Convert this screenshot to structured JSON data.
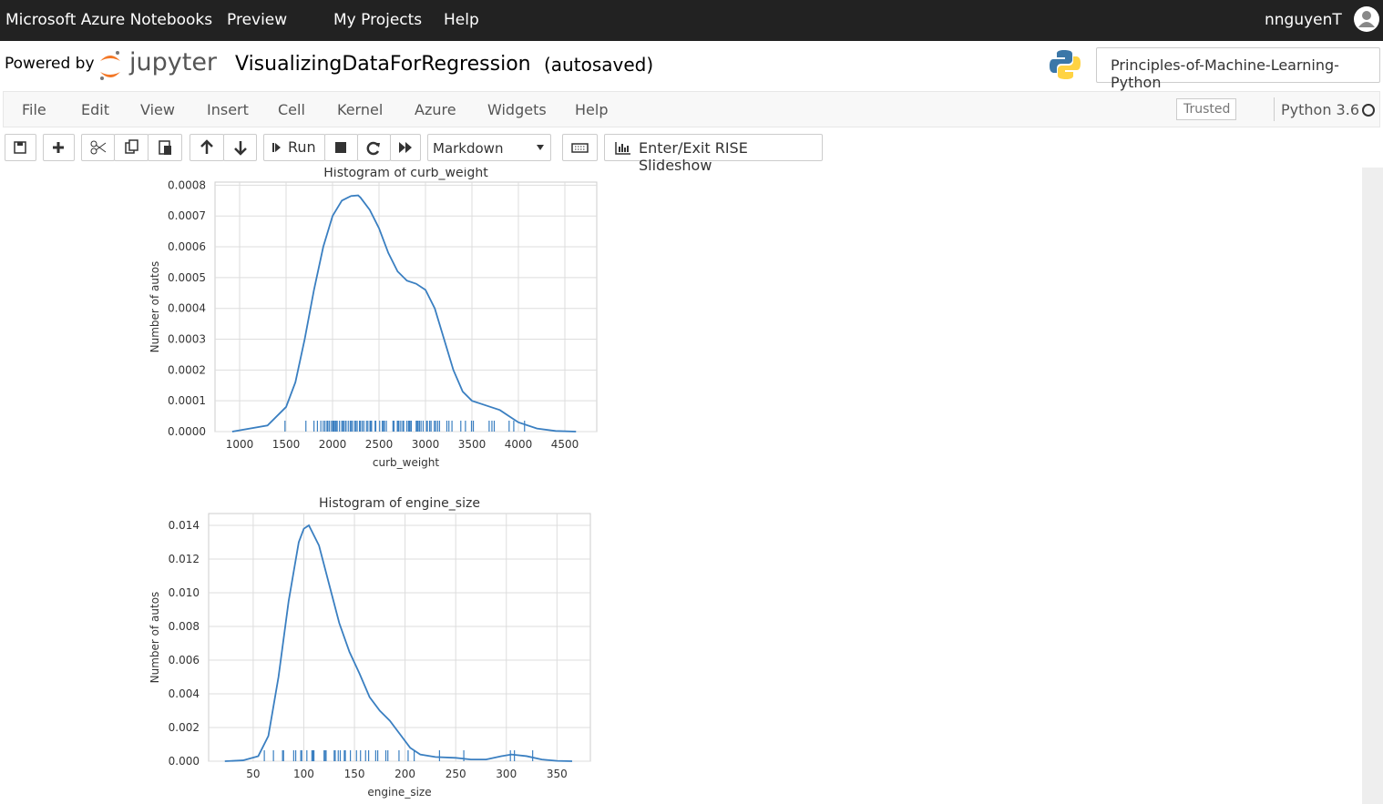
{
  "topbar": {
    "brand": "Microsoft Azure Notebooks",
    "preview": "Preview",
    "links": [
      "My Projects",
      "Help"
    ],
    "user": "nnguyenT"
  },
  "header": {
    "powered_by": "Powered by",
    "logo": "jupyter",
    "notebook_name": "VisualizingDataForRegression",
    "status": "(autosaved)",
    "project": "Principles-of-Machine-Learning-Python"
  },
  "menu": {
    "items": [
      "File",
      "Edit",
      "View",
      "Insert",
      "Cell",
      "Kernel",
      "Azure",
      "Widgets",
      "Help"
    ],
    "trusted": "Trusted",
    "kernel": "Python 3.6"
  },
  "toolbar": {
    "run": "Run",
    "cell_type": "Markdown",
    "rise": "Enter/Exit RISE Slideshow"
  },
  "chart_data": [
    {
      "type": "line",
      "title": "Histogram of curb_weight",
      "xlabel": "curb_weight",
      "ylabel": "Number of autos",
      "x": [
        920,
        1300,
        1500,
        1600,
        1700,
        1800,
        1900,
        2000,
        2100,
        2200,
        2275,
        2300,
        2400,
        2500,
        2600,
        2700,
        2800,
        2900,
        3000,
        3100,
        3200,
        3300,
        3400,
        3500,
        3600,
        3700,
        3800,
        3900,
        4000,
        4200,
        4400,
        4620
      ],
      "series": [
        {
          "color": "#3a7fc1",
          "values": [
            0,
            2e-05,
            8e-05,
            0.00016,
            0.0003,
            0.00046,
            0.0006,
            0.0007,
            0.00075,
            0.000765,
            0.000767,
            0.00076,
            0.00072,
            0.00066,
            0.00058,
            0.00052,
            0.00049,
            0.00048,
            0.00046,
            0.0004,
            0.0003,
            0.0002,
            0.00013,
            0.0001,
            9e-05,
            8e-05,
            7e-05,
            5e-05,
            3e-05,
            1e-05,
            2e-06,
            0
          ]
        }
      ],
      "rug": [
        1488,
        1713,
        1800,
        1837,
        1874,
        1900,
        1918,
        1940,
        1950,
        1967,
        1989,
        2004,
        2015,
        2028,
        2037,
        2050,
        2075,
        2100,
        2109,
        2122,
        2140,
        2145,
        2169,
        2190,
        2204,
        2212,
        2236,
        2250,
        2265,
        2290,
        2300,
        2319,
        2337,
        2365,
        2380,
        2403,
        2410,
        2420,
        2458,
        2465,
        2507,
        2535,
        2548,
        2558,
        2579,
        2650,
        2661,
        2697,
        2707,
        2714,
        2734,
        2756,
        2765,
        2800,
        2818,
        2824,
        2834,
        2847,
        2900,
        2910,
        2920,
        2935,
        2952,
        2975,
        3012,
        3020,
        3045,
        3060,
        3095,
        3110,
        3131,
        3151,
        3230,
        3252,
        3285,
        3380,
        3430,
        3495,
        3515,
        3685,
        3715,
        3740,
        3900,
        3950,
        4066
      ],
      "xlim": [
        735,
        4843
      ],
      "ylim": [
        0,
        0.00081
      ],
      "xticks": [
        1000,
        1500,
        2000,
        2500,
        3000,
        3500,
        4000,
        4500
      ],
      "yticks": [
        {
          "value": 0,
          "label": "0.0000"
        },
        0.0001,
        0.0002,
        0.0003,
        0.0004,
        0.0005,
        0.0006,
        0.0007,
        0.0008
      ],
      "grid": true
    },
    {
      "type": "line",
      "title": "Histogram of engine_size",
      "xlabel": "engine_size",
      "ylabel": "Number of autos",
      "x": [
        22,
        40,
        55,
        65,
        75,
        85,
        95,
        100,
        105,
        115,
        125,
        135,
        145,
        155,
        165,
        175,
        185,
        195,
        205,
        215,
        230,
        250,
        265,
        280,
        295,
        305,
        320,
        335,
        350,
        365
      ],
      "series": [
        {
          "color": "#3a7fc1",
          "values": [
            0,
            5e-05,
            0.0003,
            0.0015,
            0.005,
            0.0095,
            0.013,
            0.0138,
            0.014,
            0.0128,
            0.0105,
            0.0082,
            0.0065,
            0.0052,
            0.0038,
            0.003,
            0.0024,
            0.0016,
            0.0008,
            0.0004,
            0.00025,
            0.0002,
            0.0001,
            0.0001,
            0.0003,
            0.0004,
            0.0003,
            0.0001,
            2e-05,
            0
          ]
        }
      ],
      "rug": [
        61,
        70,
        79,
        80,
        90,
        92,
        97,
        98,
        103,
        108,
        109,
        110,
        120,
        121,
        122,
        130,
        131,
        134,
        136,
        140,
        141,
        146,
        152,
        156,
        161,
        164,
        171,
        173,
        181,
        183,
        194,
        203,
        209,
        234,
        258,
        304,
        308,
        326
      ],
      "xlim": [
        6,
        383
      ],
      "ylim": [
        0,
        0.0147
      ],
      "xticks": [
        50,
        100,
        150,
        200,
        250,
        300,
        350
      ],
      "yticks": [
        {
          "value": 0,
          "label": "0.000"
        },
        0.002,
        0.004,
        0.006,
        0.008,
        {
          "value": 0.01,
          "label": "0.010"
        },
        0.012,
        0.014
      ],
      "grid": true
    }
  ]
}
